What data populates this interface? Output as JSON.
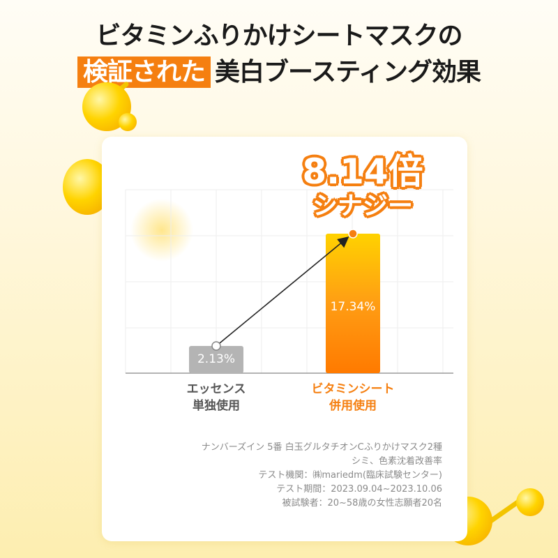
{
  "title": {
    "line1": "ビタミンふりかけシートマスクの",
    "line2_highlight": "検証された",
    "line2_rest": "美白ブースティング効果"
  },
  "callout": {
    "value": "8.14倍",
    "label": "シナジー"
  },
  "colors": {
    "accent": "#f57f10",
    "gray_bar": "#b4b4b4",
    "bar_top": "#ffd200"
  },
  "chart_data": {
    "type": "bar",
    "categories": [
      "エッセンス\n単独使用",
      "ビタミンシート\n併用使用"
    ],
    "categories_lines": [
      [
        "エッセンス",
        "単独使用"
      ],
      [
        "ビタミンシート",
        "併用使用"
      ]
    ],
    "values": [
      2.13,
      17.34
    ],
    "value_labels": [
      "2.13%",
      "17.34%"
    ],
    "grid": true,
    "annotation": "arrow from first bar to second bar"
  },
  "notes": [
    "ナンバーズイン 5番 白玉グルタチオンCふりかけマスク2種",
    "シミ、色素沈着改善率",
    "テスト機関：㈱mariedm(臨床試験センター)",
    "テスト期間：2023.09.04~2023.10.06",
    "被試験者：20~58歳の女性志願者20名"
  ]
}
